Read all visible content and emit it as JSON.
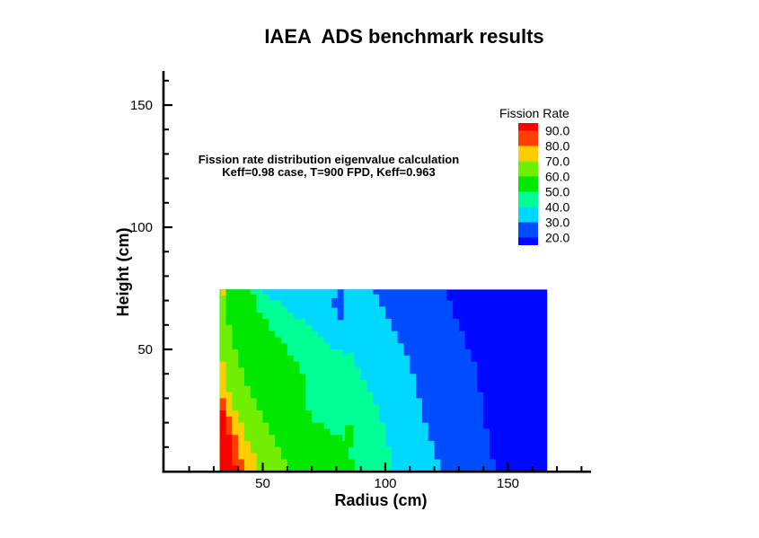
{
  "title": "IAEA  ADS benchmark results",
  "annotation": {
    "line1": "Fission rate distribution eigenvalue calculation",
    "line2": "Keff=0.98 case, T=900 FPD, Keff=0.963"
  },
  "axes": {
    "x": {
      "title": "Radius (cm)",
      "range": [
        10,
        185
      ],
      "major_ticks": [
        50,
        100,
        150
      ],
      "minor_ticks": [
        20,
        30,
        40,
        60,
        70,
        80,
        90,
        110,
        120,
        130,
        140,
        160,
        170,
        180
      ]
    },
    "y": {
      "title": "Height (cm)",
      "range": [
        0,
        163
      ],
      "major_ticks": [
        50,
        100,
        150
      ],
      "minor_ticks": [
        10,
        20,
        30,
        40,
        60,
        70,
        80,
        90,
        110,
        120,
        130,
        140,
        160
      ]
    }
  },
  "legend": {
    "title": "Fission Rate",
    "labels": [
      "90.0",
      "80.0",
      "70.0",
      "60.0",
      "50.0",
      "40.0",
      "30.0",
      "20.0"
    ],
    "segment_color_keys": [
      "red",
      "orange_red",
      "gold",
      "chartreuse",
      "green",
      "spring_green",
      "cyan",
      "blue",
      "dark_blue"
    ]
  },
  "chart_data": {
    "type": "heatmap",
    "subtype": "filled_contour",
    "title": "IAEA  ADS benchmark results",
    "xlabel": "Radius (cm)",
    "ylabel": "Height (cm)",
    "value_label": "Fission Rate",
    "xlim": [
      10,
      185
    ],
    "ylim": [
      0,
      163
    ],
    "levels": [
      20,
      30,
      40,
      50,
      60,
      70,
      80,
      90
    ],
    "colors": {
      "red": "#FB0000",
      "orange_red": "#FF4000",
      "gold": "#FFCE00",
      "chartreuse": "#70F000",
      "green": "#00E800",
      "spring_green": "#00FF95",
      "cyan": "#00D8FF",
      "blue": "#004CFF",
      "dark_blue": "#0008FF"
    },
    "domain": {
      "r": [
        32.5,
        166
      ],
      "z": [
        0,
        74.5
      ]
    },
    "base_band": {
      "label": "< 20",
      "color_key": "dark_blue"
    },
    "z_grid": [
      0,
      5,
      10,
      15,
      20,
      25,
      30,
      35,
      40,
      45,
      50,
      55,
      60,
      65,
      70,
      75
    ],
    "bands": [
      {
        "level": 20,
        "color_key": "blue",
        "r_boundary_by_z": [
          145,
          144,
          142.5,
          141.5,
          140.5,
          139.5,
          139,
          138.5,
          137.5,
          136,
          134,
          132,
          130,
          128,
          126,
          124
        ]
      },
      {
        "level": 30,
        "color_key": "cyan",
        "r_boundary_by_z": [
          122,
          121,
          119.5,
          118,
          116.5,
          115,
          113.5,
          112,
          111,
          109.5,
          107.5,
          105,
          103,
          100,
          97,
          94
        ]
      },
      {
        "level": 40,
        "color_key": "spring_green",
        "r_boundary_by_z": [
          103,
          102,
          101,
          100,
          99,
          97.5,
          95.5,
          93,
          90,
          85.5,
          80,
          74.5,
          68,
          62,
          55,
          48
        ]
      },
      {
        "level": 50,
        "color_key": "green",
        "r_boundary_by_z": [
          87,
          86.5,
          85,
          80,
          72,
          68,
          67,
          67,
          66.5,
          64,
          60,
          56,
          52,
          49,
          47,
          45
        ]
      },
      {
        "level": 60,
        "color_key": "chartreuse",
        "r_boundary_by_z": [
          61,
          58.5,
          56,
          53.5,
          51,
          48.5,
          46,
          44,
          42,
          40,
          38.5,
          37,
          36,
          35.5,
          35,
          35
        ]
      },
      {
        "level": 70,
        "color_key": "gold",
        "r_boundary_by_z": [
          49,
          47,
          45,
          43,
          41,
          39,
          37,
          35.5,
          34.5,
          33.5,
          32.5,
          32.5,
          32.5,
          32.5,
          32.5,
          32.5
        ]
      },
      {
        "level": 80,
        "color_key": "orange_red",
        "r_boundary_by_z": [
          42,
          41,
          40,
          38.5,
          37,
          35.5,
          34,
          32.5,
          32.5,
          32.5,
          32.5,
          32.5,
          32.5,
          32.5,
          32.5,
          32.5
        ]
      },
      {
        "level": 90,
        "color_key": "red",
        "r_boundary_by_z": [
          39,
          38,
          37,
          36,
          35,
          33.5,
          32.5,
          32.5,
          32.5,
          32.5,
          32.5,
          32.5,
          32.5,
          32.5,
          32.5,
          32.5
        ]
      }
    ],
    "features": [
      {
        "name": "green-spike",
        "color_key": "green",
        "r": [
          83.5,
          87
        ],
        "z": [
          10,
          19
        ]
      },
      {
        "name": "mint-spike-base",
        "color_key": "spring_green",
        "r": [
          82.5,
          87.5
        ],
        "z": [
          40,
          45
        ]
      },
      {
        "name": "mint-spike-tip",
        "color_key": "spring_green",
        "r": [
          84,
          87
        ],
        "z": [
          45,
          48.5
        ]
      },
      {
        "name": "blue-notch-bar",
        "color_key": "blue",
        "r": [
          80.5,
          83
        ],
        "z": [
          62,
          74.5
        ]
      },
      {
        "name": "blue-notch-tooth",
        "color_key": "blue",
        "r": [
          78,
          80.5
        ],
        "z": [
          67,
          71
        ]
      },
      {
        "name": "gold-corner-cell",
        "color_key": "gold",
        "r": [
          33,
          35
        ],
        "z": [
          72,
          74.5
        ]
      }
    ]
  }
}
